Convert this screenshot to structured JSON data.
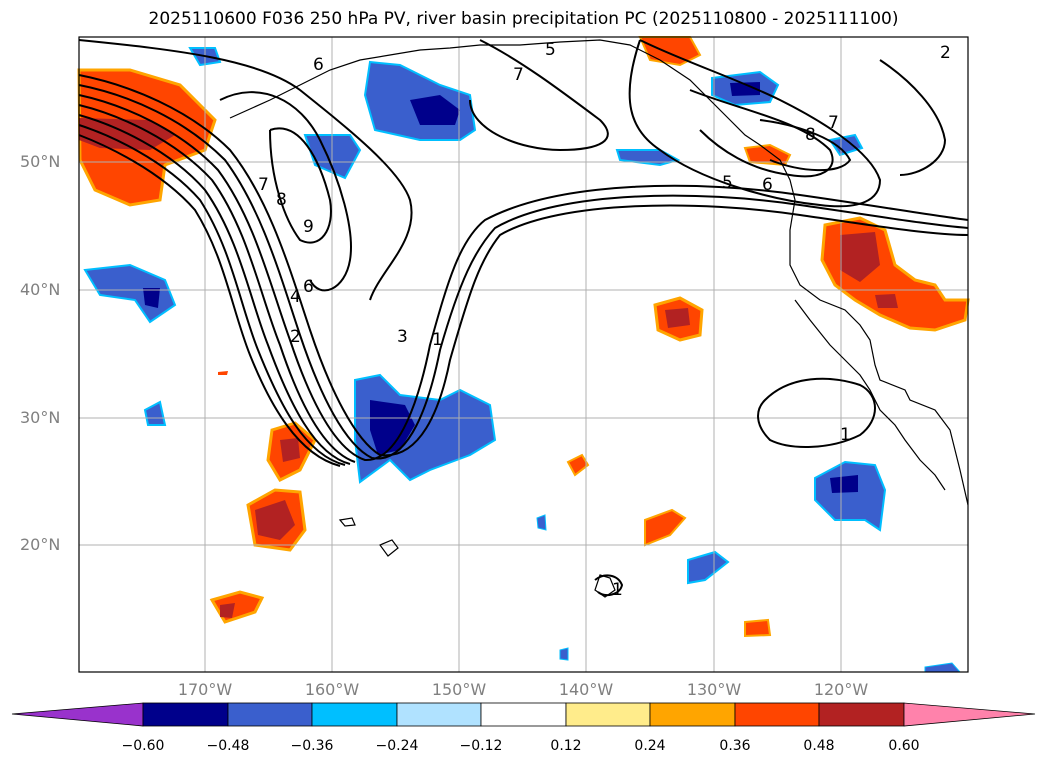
{
  "title": "2025110600 F036 250 hPa PV, river basin precipitation PC (2025110800 - 2025111100)",
  "axes": {
    "lat_labels": [
      "50°N",
      "40°N",
      "30°N",
      "20°N"
    ],
    "lon_labels": [
      "170°W",
      "160°W",
      "150°W",
      "140°W",
      "130°W",
      "120°W"
    ]
  },
  "contour_labels": [
    "5",
    "7",
    "6",
    "7",
    "8",
    "9",
    "6",
    "4",
    "2",
    "3",
    "1",
    "5",
    "6",
    "8",
    "7",
    "1",
    "1",
    "2"
  ],
  "colorbar": {
    "ticks": [
      "−0.60",
      "−0.48",
      "−0.36",
      "−0.24",
      "−0.12",
      "0.12",
      "0.24",
      "0.36",
      "0.48",
      "0.60"
    ],
    "colors": [
      "#9932cc",
      "#00008b",
      "#3a5fcd",
      "#00bfff",
      "#b0e2ff",
      "#ffffff",
      "#ffec8b",
      "#ffa500",
      "#ff4500",
      "#b22222",
      "#ff82ab"
    ]
  }
}
